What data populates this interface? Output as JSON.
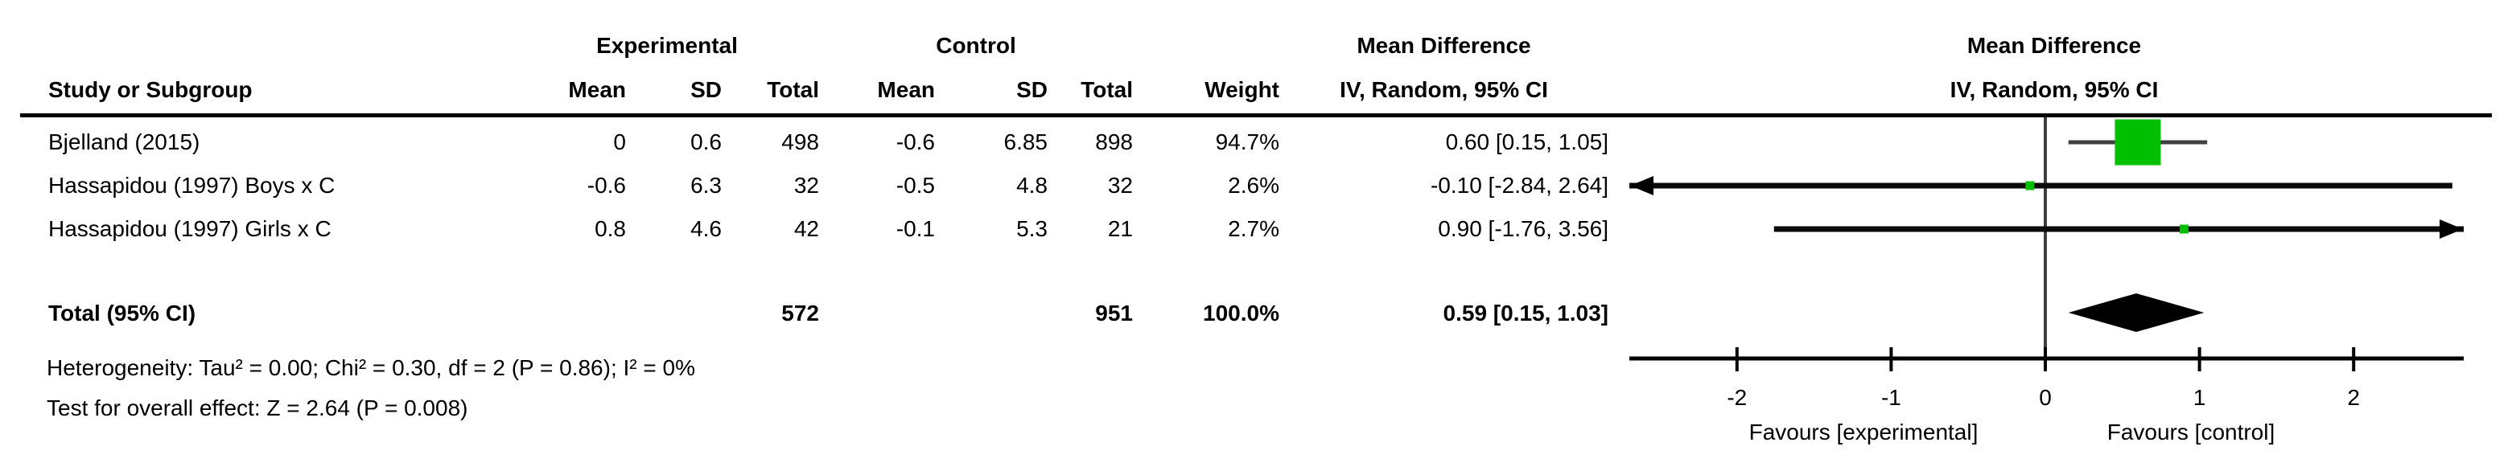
{
  "header": {
    "study": "Study or Subgroup",
    "group_experimental": "Experimental",
    "group_control": "Control",
    "group_mean_difference": "Mean Difference",
    "experimental": {
      "mean": "Mean",
      "sd": "SD",
      "total": "Total"
    },
    "control": {
      "mean": "Mean",
      "sd": "SD",
      "total": "Total"
    },
    "weight": "Weight",
    "iv_random": "IV, Random, 95% CI",
    "plot_title_line1": "Mean Difference",
    "plot_title_line2": "IV, Random, 95% CI"
  },
  "rows": [
    {
      "study": "Bjelland (2015)",
      "exp_mean": "0",
      "exp_sd": "0.6",
      "exp_total": "498",
      "ctl_mean": "-0.6",
      "ctl_sd": "6.85",
      "ctl_total": "898",
      "weight": "94.7%",
      "md_ci": "0.60 [0.15, 1.05]"
    },
    {
      "study": "Hassapidou (1997) Boys x C",
      "exp_mean": "-0.6",
      "exp_sd": "6.3",
      "exp_total": "32",
      "ctl_mean": "-0.5",
      "ctl_sd": "4.8",
      "ctl_total": "32",
      "weight": "2.6%",
      "md_ci": "-0.10 [-2.84, 2.64]"
    },
    {
      "study": "Hassapidou (1997) Girls x C",
      "exp_mean": "0.8",
      "exp_sd": "4.6",
      "exp_total": "42",
      "ctl_mean": "-0.1",
      "ctl_sd": "5.3",
      "ctl_total": "21",
      "weight": "2.7%",
      "md_ci": "0.90 [-1.76, 3.56]"
    }
  ],
  "total_row": {
    "label": "Total (95% CI)",
    "exp_total": "572",
    "ctl_total": "951",
    "weight": "100.0%",
    "md_ci": "0.59 [0.15, 1.03]"
  },
  "footnotes": {
    "heterogeneity": "Heterogeneity: Tau² = 0.00; Chi² = 0.30, df = 2 (P = 0.86); I² = 0%",
    "overall_effect": "Test for overall effect: Z = 2.64 (P = 0.008)"
  },
  "axis": {
    "tick_labels": [
      "-2",
      "-1",
      "0",
      "1",
      "2"
    ],
    "left_label": "Favours [experimental]",
    "right_label": "Favours [control]"
  },
  "chart_data": {
    "type": "forest",
    "effect_measure": "Mean Difference",
    "model": "IV, Random, 95% CI",
    "x_axis": {
      "ticks": [
        -2,
        -1,
        0,
        1,
        2
      ],
      "plotted_min": -2.7,
      "plotted_max": 2.71,
      "left_label": "Favours [experimental]",
      "right_label": "Favours [control]"
    },
    "studies": [
      {
        "name": "Bjelland (2015)",
        "mean_exp": 0,
        "sd_exp": 0.6,
        "n_exp": 498,
        "mean_ctl": -0.6,
        "sd_ctl": 6.85,
        "n_ctl": 898,
        "weight_pct": 94.7,
        "md": 0.6,
        "ci_lower": 0.15,
        "ci_upper": 1.05
      },
      {
        "name": "Hassapidou (1997) Boys x C",
        "mean_exp": -0.6,
        "sd_exp": 6.3,
        "n_exp": 32,
        "mean_ctl": -0.5,
        "sd_ctl": 4.8,
        "n_ctl": 32,
        "weight_pct": 2.6,
        "md": -0.1,
        "ci_lower": -2.84,
        "ci_upper": 2.64
      },
      {
        "name": "Hassapidou (1997) Girls x C",
        "mean_exp": 0.8,
        "sd_exp": 4.6,
        "n_exp": 42,
        "mean_ctl": -0.1,
        "sd_ctl": 5.3,
        "n_ctl": 21,
        "weight_pct": 2.7,
        "md": 0.9,
        "ci_lower": -1.76,
        "ci_upper": 3.56
      }
    ],
    "total": {
      "n_exp": 572,
      "n_ctl": 951,
      "weight_pct": 100.0,
      "md": 0.59,
      "ci_lower": 0.15,
      "ci_upper": 1.03
    },
    "heterogeneity": {
      "tau2": 0.0,
      "chi2": 0.3,
      "df": 2,
      "p": 0.86,
      "i2_pct": 0
    },
    "overall_effect": {
      "z": 2.64,
      "p": 0.008
    },
    "colors": {
      "square": "#00be00",
      "study_ci_line": "#0a0a0a",
      "first_ci_line": "#404040",
      "summary_diamond": "#000000",
      "axis": "#000000",
      "zero_line": "#3f3f3f"
    }
  }
}
